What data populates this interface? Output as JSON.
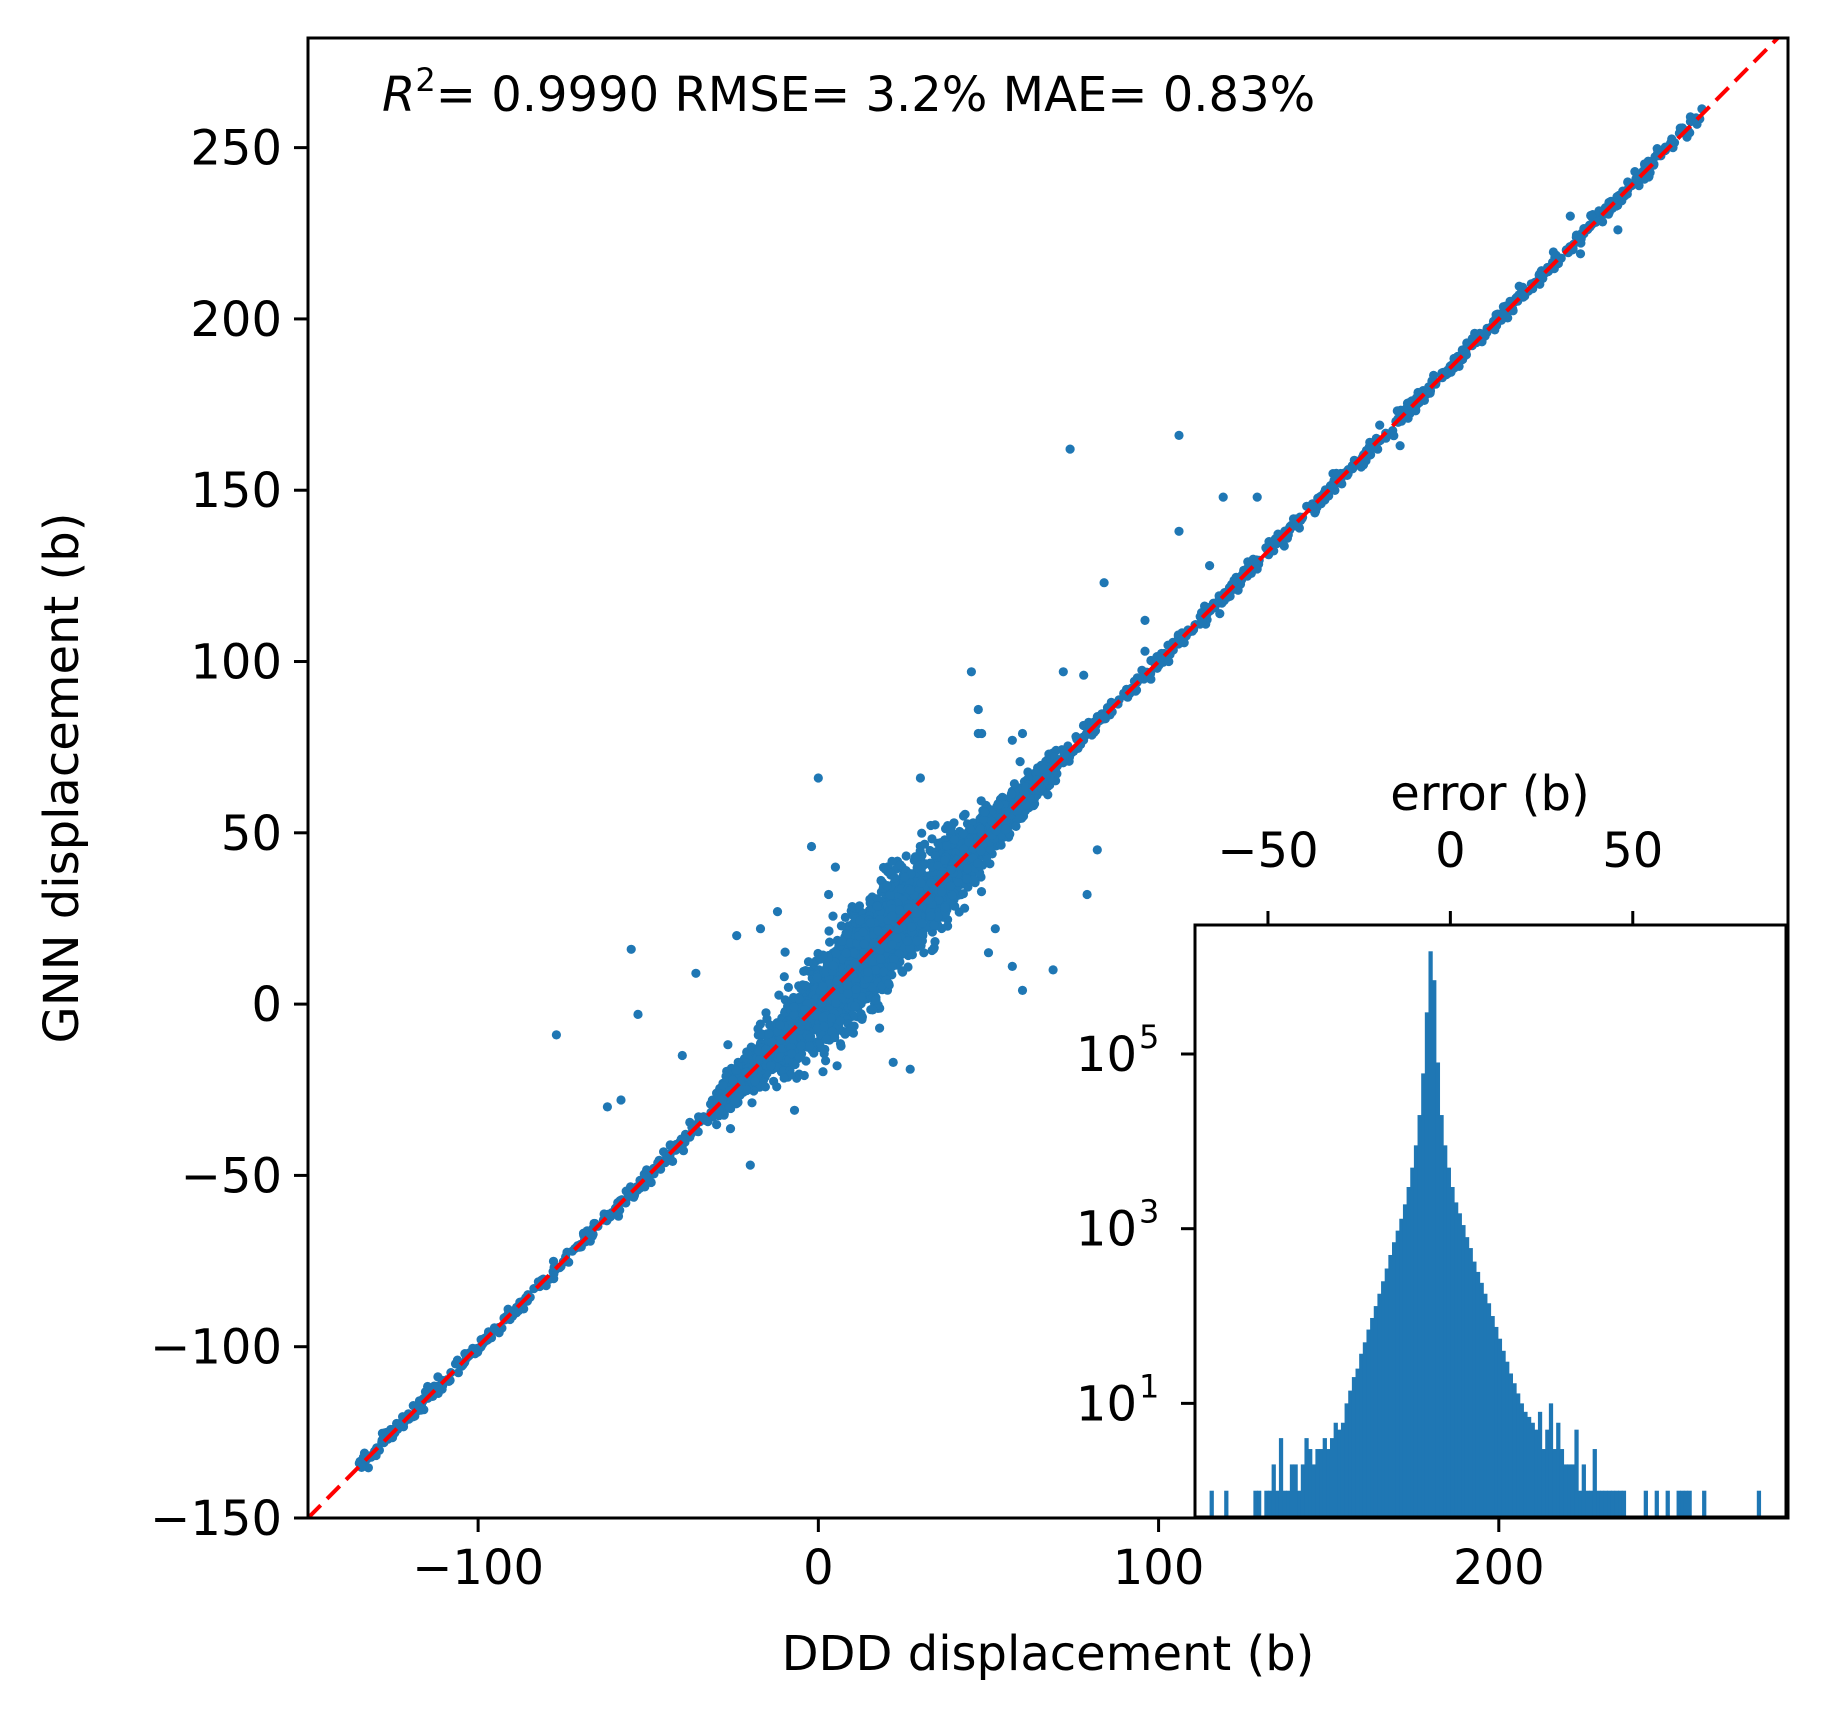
{
  "colors": {
    "points": "#1f77b4",
    "bars": "#1f77b4",
    "reference_line": "#ff0000",
    "axes": "#000000",
    "background": "#ffffff"
  },
  "chart_data": [
    {
      "type": "scatter",
      "title": "",
      "annotation": {
        "r2_symbol": "R",
        "r2_exponent": "2",
        "r2_text": "= 0.9990",
        "rmse_text": "RMSE= 3.2%",
        "mae_text": "MAE= 0.83%"
      },
      "xlabel": "DDD displacement (b)",
      "ylabel": "GNN displacement (b)",
      "xlim": [
        -150,
        285
      ],
      "ylim": [
        -150,
        282
      ],
      "xticks": [
        -100,
        0,
        100,
        200
      ],
      "xtick_labels": [
        "−100",
        "0",
        "100",
        "200"
      ],
      "yticks": [
        -150,
        -100,
        -50,
        0,
        50,
        100,
        150,
        200,
        250
      ],
      "ytick_labels": [
        "−150",
        "−100",
        "−50",
        "0",
        "50",
        "100",
        "150",
        "200",
        "250"
      ],
      "grid": false,
      "reference_line": {
        "slope": 1,
        "intercept": 0,
        "style": "dashed",
        "label": "y = x"
      },
      "series": [
        {
          "name": "predictions",
          "description": "dense cloud along y = x from about -135 to 260, widest scatter between -20 and 60",
          "outliers": [
            {
              "x": 74,
              "y": 162
            },
            {
              "x": 106,
              "y": 166
            },
            {
              "x": 119,
              "y": 148
            },
            {
              "x": 106,
              "y": 138
            },
            {
              "x": 129,
              "y": 148
            },
            {
              "x": 84,
              "y": 123
            },
            {
              "x": 45,
              "y": 97
            },
            {
              "x": 47,
              "y": 86
            },
            {
              "x": 47,
              "y": 79
            },
            {
              "x": 48,
              "y": 79
            },
            {
              "x": 60,
              "y": 79
            },
            {
              "x": 57,
              "y": 77
            },
            {
              "x": 72,
              "y": 97
            },
            {
              "x": 78,
              "y": 96
            },
            {
              "x": 0,
              "y": 66
            },
            {
              "x": 30,
              "y": 66
            },
            {
              "x": 82,
              "y": 45
            },
            {
              "x": 79,
              "y": 32
            },
            {
              "x": 69,
              "y": 10
            },
            {
              "x": 60,
              "y": 4
            },
            {
              "x": -55,
              "y": 16
            },
            {
              "x": -53,
              "y": -3
            },
            {
              "x": -77,
              "y": -9
            },
            {
              "x": -62,
              "y": -30
            },
            {
              "x": -58,
              "y": -28
            },
            {
              "x": -20,
              "y": -47
            },
            {
              "x": 22,
              "y": -17
            },
            {
              "x": 27,
              "y": -19
            },
            {
              "x": 9,
              "y": -8
            },
            {
              "x": 3,
              "y": 32
            },
            {
              "x": -24,
              "y": 20
            },
            {
              "x": -17,
              "y": 22
            },
            {
              "x": -40,
              "y": -15
            },
            {
              "x": -36,
              "y": 9
            },
            {
              "x": 57,
              "y": 11
            },
            {
              "x": 50,
              "y": 15
            },
            {
              "x": 52,
              "y": 22
            },
            {
              "x": 96,
              "y": 112
            },
            {
              "x": 115,
              "y": 128
            },
            {
              "x": 129,
              "y": 127
            },
            {
              "x": 138,
              "y": 137
            },
            {
              "x": 96,
              "y": 103
            },
            {
              "x": 103,
              "y": 100
            },
            {
              "x": 118,
              "y": 114
            },
            {
              "x": 171,
              "y": 163
            },
            {
              "x": 165,
              "y": 169
            },
            {
              "x": 221,
              "y": 230
            },
            {
              "x": 235,
              "y": 226
            },
            {
              "x": 224,
              "y": 219
            },
            {
              "x": -2,
              "y": 46
            },
            {
              "x": 5,
              "y": 40
            },
            {
              "x": 18,
              "y": -7
            },
            {
              "x": -7,
              "y": -31
            },
            {
              "x": -29,
              "y": -28
            },
            {
              "x": -14,
              "y": -18
            },
            {
              "x": 40,
              "y": 48
            },
            {
              "x": 43,
              "y": 28
            },
            {
              "x": 34,
              "y": 23
            },
            {
              "x": -12,
              "y": 27
            },
            {
              "x": -10,
              "y": 8
            }
          ]
        }
      ]
    },
    {
      "type": "bar",
      "subtype": "histogram",
      "xlabel": "error (b)",
      "xlabel_position": "top",
      "ylabel": "",
      "yscale": "log",
      "xlim": [
        -70,
        92
      ],
      "ylim": [
        0.5,
        3000000
      ],
      "xticks": [
        -50,
        0,
        50
      ],
      "xtick_labels": [
        "−50",
        "0",
        "50"
      ],
      "yticks": [
        10,
        1000,
        100000
      ],
      "ytick_bases": [
        "10",
        "10",
        "10"
      ],
      "ytick_exponents": [
        "1",
        "3",
        "5"
      ],
      "bins": {
        "start": -66,
        "width": 1,
        "counts": [
          1,
          0,
          0,
          0,
          1,
          0,
          0,
          0,
          0,
          0,
          0,
          0,
          1,
          1,
          0,
          1,
          1,
          2,
          1,
          4,
          1,
          1,
          2,
          2,
          1,
          2,
          4,
          3,
          2,
          3,
          3,
          4,
          3,
          4,
          6,
          5,
          6,
          10,
          14,
          20,
          25,
          37,
          50,
          70,
          95,
          130,
          180,
          250,
          350,
          500,
          700,
          950,
          1300,
          1900,
          3000,
          5000,
          9000,
          20000,
          60000,
          300000,
          1500000,
          700000,
          80000,
          20000,
          9000,
          5000,
          3000,
          2000,
          1500,
          1100,
          800,
          600,
          420,
          320,
          240,
          180,
          140,
          100,
          75,
          55,
          40,
          30,
          22,
          17,
          13,
          10,
          8,
          7,
          6,
          5,
          8,
          3,
          5,
          10,
          3,
          6,
          3,
          2,
          2,
          2,
          5,
          1,
          2,
          1,
          1,
          3,
          1,
          1,
          1,
          1,
          1,
          1,
          1,
          1,
          0,
          0,
          0,
          0,
          0,
          1,
          0,
          0,
          1,
          0,
          0,
          1,
          0,
          0,
          1,
          1,
          1,
          1,
          0,
          0,
          0,
          1,
          0,
          0,
          0,
          0,
          0,
          0,
          0,
          0,
          0,
          0,
          0,
          0,
          0,
          0,
          1,
          0,
          0
        ]
      }
    }
  ]
}
